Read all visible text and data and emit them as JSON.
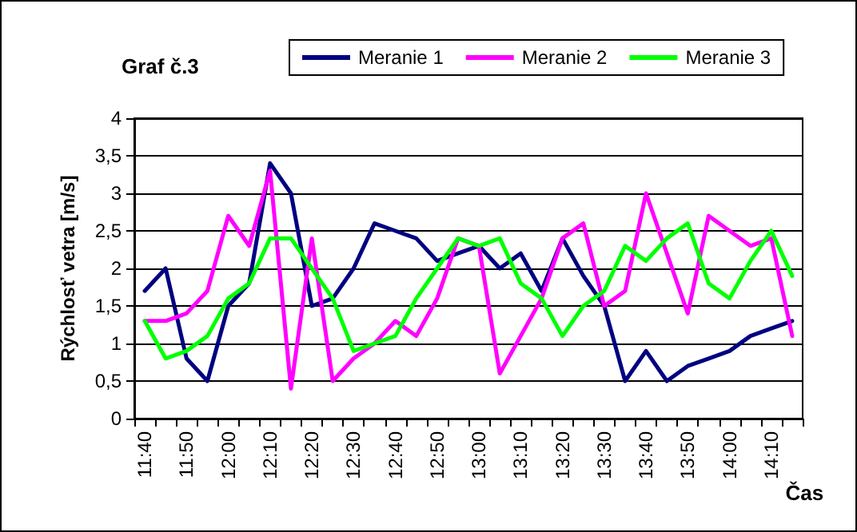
{
  "chart_data": {
    "type": "line",
    "title": "Graf č.3",
    "xlabel": "Čas",
    "ylabel": "Rýchlosť vetra [m/s]",
    "categories": [
      "11:40",
      null,
      "11:50",
      null,
      "12:00",
      null,
      "12:10",
      null,
      "12:20",
      null,
      "12:30",
      null,
      "12:40",
      null,
      "12:50",
      null,
      "13:00",
      null,
      "13:10",
      null,
      "13:20",
      null,
      "13:30",
      null,
      "13:40",
      null,
      "13:50",
      null,
      "14:00",
      null,
      "14:10",
      null
    ],
    "series": [
      {
        "name": "Meranie 1",
        "color": "#000080",
        "values": [
          1.7,
          2.0,
          0.8,
          0.5,
          1.5,
          1.8,
          3.4,
          3.0,
          1.5,
          1.6,
          2.0,
          2.6,
          2.5,
          2.4,
          2.1,
          2.2,
          2.3,
          2.0,
          2.2,
          1.7,
          2.4,
          1.9,
          1.5,
          0.5,
          0.9,
          0.5,
          0.7,
          0.8,
          0.9,
          1.1,
          1.2,
          1.3
        ]
      },
      {
        "name": "Meranie 2",
        "color": "#ff00ff",
        "values": [
          1.3,
          1.3,
          1.4,
          1.7,
          2.7,
          2.3,
          3.3,
          0.4,
          2.4,
          0.5,
          0.8,
          1.0,
          1.3,
          1.1,
          1.6,
          2.4,
          2.3,
          0.6,
          1.1,
          1.6,
          2.4,
          2.6,
          1.5,
          1.7,
          3.0,
          2.2,
          1.4,
          2.7,
          2.5,
          2.3,
          2.4,
          1.1
        ]
      },
      {
        "name": "Meranie 3",
        "color": "#00ff00",
        "values": [
          1.3,
          0.8,
          0.9,
          1.1,
          1.6,
          1.8,
          2.4,
          2.4,
          2.0,
          1.6,
          0.9,
          1.0,
          1.1,
          1.6,
          2.0,
          2.4,
          2.3,
          2.4,
          1.8,
          1.6,
          1.1,
          1.5,
          1.7,
          2.3,
          2.1,
          2.4,
          2.6,
          1.8,
          1.6,
          2.1,
          2.5,
          1.9
        ]
      }
    ],
    "ylim": [
      0,
      4
    ],
    "yticks": [
      0,
      {
        "value": 0.5,
        "label": "0,5"
      },
      1,
      {
        "value": 1.5,
        "label": "1,5"
      },
      2,
      {
        "value": 2.5,
        "label": "2,5"
      },
      3,
      {
        "value": 3.5,
        "label": "3,5"
      },
      4
    ],
    "grid": "y",
    "legend": "top",
    "marker": "none",
    "line_style": "solid"
  }
}
